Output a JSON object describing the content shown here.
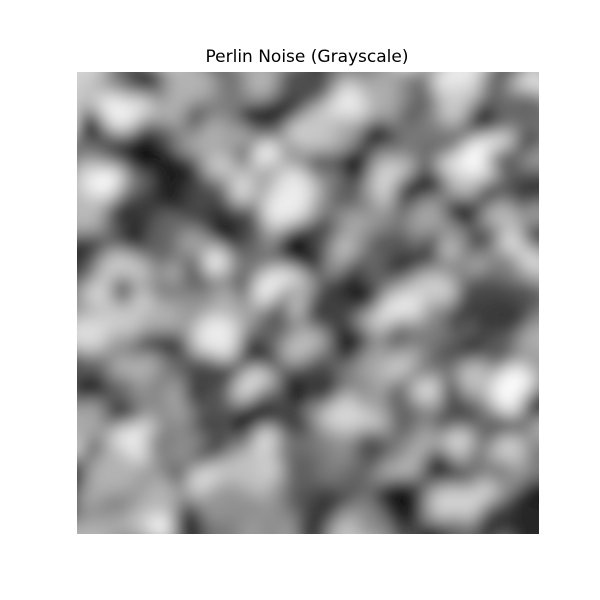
{
  "title": "Perlin Noise (Grayscale)",
  "image": {
    "description_kind": "grayscale-noise-texture",
    "colormap": "gray",
    "background_color": "#808080"
  }
}
